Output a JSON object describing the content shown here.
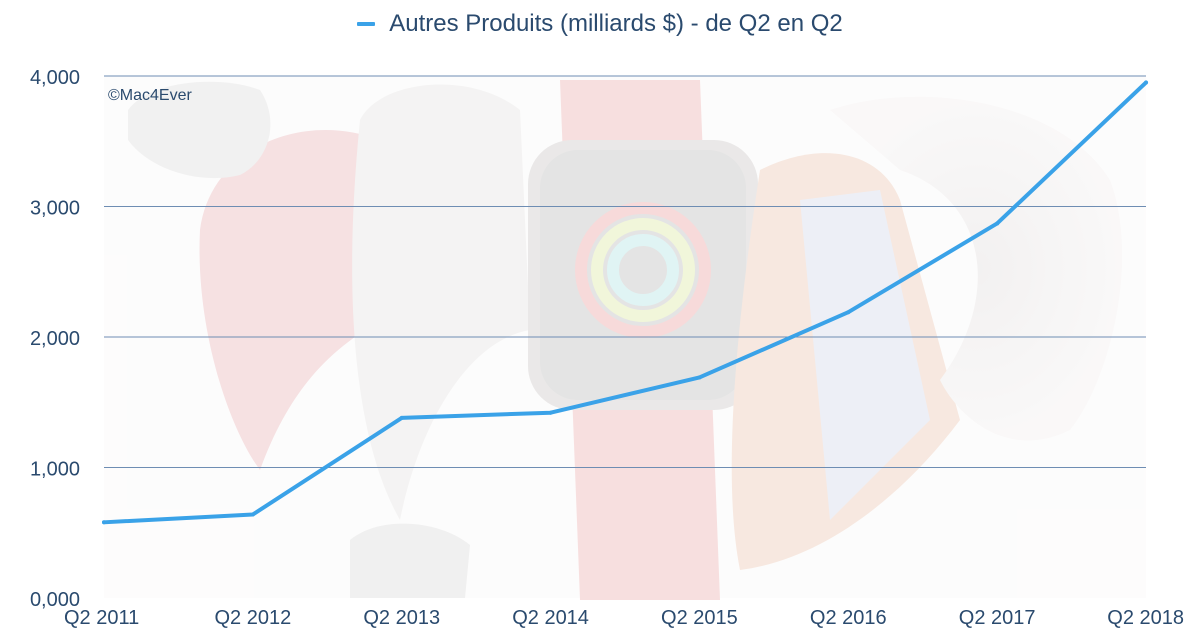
{
  "legend": {
    "label": "Autres Produits (milliards $) - de Q2 en Q2"
  },
  "watermark": "©Mac4Ever",
  "background_image": "apple-watch-bands-photo",
  "colors": {
    "line": "#3aa2e8",
    "grid": "#6e8db3",
    "text": "#2a4a6e"
  },
  "chart_data": {
    "type": "line",
    "categories": [
      "Q2 2011",
      "Q2 2012",
      "Q2 2013",
      "Q2 2014",
      "Q2 2015",
      "Q2 2016",
      "Q2 2017",
      "Q2 2018"
    ],
    "series": [
      {
        "name": "Autres Produits (milliards $) - de Q2 en Q2",
        "values": [
          0.58,
          0.64,
          1.38,
          1.42,
          1.69,
          2.19,
          2.87,
          3.95
        ]
      }
    ],
    "ylim": [
      0,
      4
    ],
    "yticks": [
      "0,000",
      "1,000",
      "2,000",
      "3,000",
      "4,000"
    ],
    "grid": true,
    "legend_position": "top-center"
  }
}
